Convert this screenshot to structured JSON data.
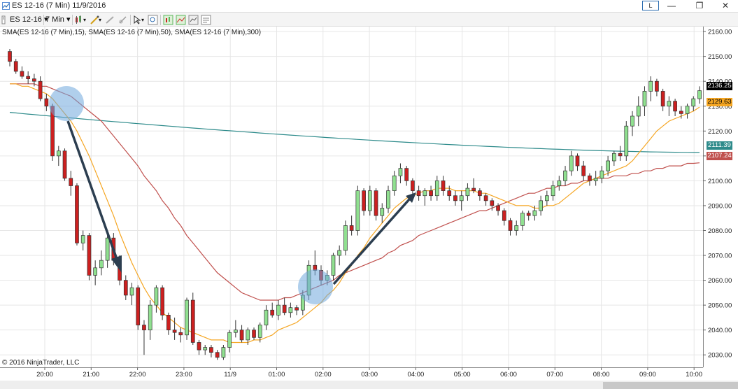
{
  "window": {
    "title": "ES 12-16 (7 Min)  11/9/2016",
    "link_label": "L",
    "minimize_glyph": "—",
    "restore_glyph": "❐",
    "close_glyph": "✕"
  },
  "toolbar": {
    "instrument": "ES 12-16",
    "interval": "7 Min",
    "dropdown_glyph": "▾"
  },
  "chart": {
    "indicator_label": "SMA(ES 12-16 (7 Min),15), SMA(ES 12-16 (7 Min),50), SMA(ES 12-16 (7 Min),300)",
    "copyright": "© 2016 NinjaTrader, LLC",
    "price_tags": [
      {
        "label": "2136.25",
        "color": "#000000",
        "text_color": "#ffffff"
      },
      {
        "label": "2129.63",
        "color": "#f5a623",
        "text_color": "#000000"
      },
      {
        "label": "2111.39",
        "color": "#2e8b8b",
        "text_color": "#ffffff"
      },
      {
        "label": "2107.24",
        "color": "#c0504d",
        "text_color": "#ffffff"
      }
    ]
  },
  "chart_data": {
    "type": "candlestick",
    "y_ticks": [
      "2160.00",
      "2150.00",
      "2140.00",
      "2130.00",
      "2120.00",
      "2110.00",
      "2100.00",
      "2090.00",
      "2080.00",
      "2070.00",
      "2060.00",
      "2050.00",
      "2040.00",
      "2030.00"
    ],
    "ylim": [
      2025,
      2162
    ],
    "x_ticks": [
      "20:00",
      "21:00",
      "22:00",
      "23:00",
      "11/9",
      "01:00",
      "02:00",
      "03:00",
      "04:00",
      "05:00",
      "06:00",
      "07:00",
      "08:00",
      "09:00",
      "10:00"
    ],
    "colors": {
      "up": "#90e090",
      "down": "#cc2020",
      "sma15": "#f5a623",
      "sma50": "#c0504d",
      "sma300": "#2e8b8b",
      "highlight": "#6fa8dc",
      "arrow": "#2c3e50"
    },
    "candles": [
      [
        2152,
        2153,
        2146,
        2148
      ],
      [
        2148,
        2149,
        2143,
        2144
      ],
      [
        2144,
        2146,
        2141,
        2142
      ],
      [
        2142,
        2144,
        2139,
        2141
      ],
      [
        2141,
        2143,
        2138,
        2140
      ],
      [
        2140,
        2142,
        2132,
        2133
      ],
      [
        2133,
        2135,
        2128,
        2130
      ],
      [
        2130,
        2131,
        2108,
        2110
      ],
      [
        2110,
        2114,
        2106,
        2112
      ],
      [
        2112,
        2113,
        2100,
        2101
      ],
      [
        2101,
        2104,
        2094,
        2098
      ],
      [
        2098,
        2099,
        2074,
        2075
      ],
      [
        2075,
        2080,
        2072,
        2078
      ],
      [
        2078,
        2079,
        2060,
        2062
      ],
      [
        2062,
        2068,
        2058,
        2065
      ],
      [
        2065,
        2072,
        2062,
        2068
      ],
      [
        2068,
        2080,
        2065,
        2077
      ],
      [
        2077,
        2079,
        2066,
        2068
      ],
      [
        2068,
        2070,
        2058,
        2060
      ],
      [
        2060,
        2062,
        2052,
        2054
      ],
      [
        2054,
        2059,
        2050,
        2057
      ],
      [
        2057,
        2058,
        2040,
        2042
      ],
      [
        2042,
        2044,
        2030,
        2040
      ],
      [
        2040,
        2052,
        2036,
        2050
      ],
      [
        2050,
        2058,
        2047,
        2057
      ],
      [
        2057,
        2058,
        2044,
        2046
      ],
      [
        2046,
        2047,
        2038,
        2040
      ],
      [
        2040,
        2045,
        2036,
        2039
      ],
      [
        2039,
        2041,
        2035,
        2038
      ],
      [
        2038,
        2053,
        2036,
        2052
      ],
      [
        2052,
        2055,
        2034,
        2035
      ],
      [
        2035,
        2036,
        2030,
        2032
      ],
      [
        2032,
        2034,
        2030,
        2033
      ],
      [
        2033,
        2034,
        2029,
        2031
      ],
      [
        2031,
        2032,
        2028,
        2029
      ],
      [
        2029,
        2034,
        2028,
        2033
      ],
      [
        2033,
        2040,
        2031,
        2039
      ],
      [
        2039,
        2044,
        2037,
        2040
      ],
      [
        2040,
        2042,
        2035,
        2036
      ],
      [
        2036,
        2041,
        2034,
        2040
      ],
      [
        2040,
        2041,
        2036,
        2037
      ],
      [
        2037,
        2043,
        2035,
        2042
      ],
      [
        2042,
        2050,
        2040,
        2048
      ],
      [
        2048,
        2051,
        2045,
        2046
      ],
      [
        2046,
        2052,
        2044,
        2050
      ],
      [
        2050,
        2053,
        2046,
        2047
      ],
      [
        2047,
        2051,
        2045,
        2049
      ],
      [
        2049,
        2050,
        2046,
        2048
      ],
      [
        2048,
        2056,
        2046,
        2054
      ],
      [
        2054,
        2068,
        2052,
        2066
      ],
      [
        2066,
        2072,
        2062,
        2064
      ],
      [
        2064,
        2066,
        2058,
        2060
      ],
      [
        2060,
        2064,
        2058,
        2062
      ],
      [
        2062,
        2071,
        2060,
        2070
      ],
      [
        2070,
        2074,
        2066,
        2072
      ],
      [
        2072,
        2084,
        2070,
        2082
      ],
      [
        2082,
        2086,
        2078,
        2080
      ],
      [
        2080,
        2098,
        2078,
        2096
      ],
      [
        2096,
        2097,
        2086,
        2088
      ],
      [
        2088,
        2098,
        2086,
        2096
      ],
      [
        2096,
        2097,
        2084,
        2086
      ],
      [
        2086,
        2091,
        2083,
        2089
      ],
      [
        2089,
        2098,
        2087,
        2096
      ],
      [
        2096,
        2104,
        2094,
        2102
      ],
      [
        2102,
        2107,
        2099,
        2105
      ],
      [
        2105,
        2106,
        2098,
        2100
      ],
      [
        2100,
        2101,
        2094,
        2096
      ],
      [
        2096,
        2098,
        2092,
        2094
      ],
      [
        2094,
        2097,
        2090,
        2096
      ],
      [
        2096,
        2098,
        2092,
        2094
      ],
      [
        2094,
        2102,
        2092,
        2100
      ],
      [
        2100,
        2102,
        2094,
        2096
      ],
      [
        2096,
        2098,
        2092,
        2094
      ],
      [
        2094,
        2096,
        2090,
        2092
      ],
      [
        2092,
        2096,
        2088,
        2094
      ],
      [
        2094,
        2099,
        2092,
        2097
      ],
      [
        2097,
        2101,
        2095,
        2096
      ],
      [
        2096,
        2097,
        2092,
        2094
      ],
      [
        2094,
        2095,
        2090,
        2092
      ],
      [
        2092,
        2093,
        2088,
        2090
      ],
      [
        2090,
        2091,
        2086,
        2088
      ],
      [
        2088,
        2089,
        2082,
        2084
      ],
      [
        2084,
        2085,
        2078,
        2080
      ],
      [
        2080,
        2084,
        2078,
        2082
      ],
      [
        2082,
        2088,
        2080,
        2087
      ],
      [
        2087,
        2088,
        2084,
        2086
      ],
      [
        2086,
        2090,
        2084,
        2088
      ],
      [
        2088,
        2094,
        2086,
        2092
      ],
      [
        2092,
        2096,
        2090,
        2094
      ],
      [
        2094,
        2100,
        2092,
        2098
      ],
      [
        2098,
        2102,
        2096,
        2100
      ],
      [
        2100,
        2106,
        2098,
        2104
      ],
      [
        2104,
        2112,
        2102,
        2110
      ],
      [
        2110,
        2111,
        2104,
        2106
      ],
      [
        2106,
        2108,
        2100,
        2102
      ],
      [
        2102,
        2103,
        2098,
        2100
      ],
      [
        2100,
        2104,
        2098,
        2101
      ],
      [
        2101,
        2106,
        2099,
        2104
      ],
      [
        2104,
        2110,
        2102,
        2108
      ],
      [
        2108,
        2112,
        2106,
        2111
      ],
      [
        2111,
        2114,
        2108,
        2110
      ],
      [
        2110,
        2124,
        2108,
        2122
      ],
      [
        2122,
        2128,
        2118,
        2126
      ],
      [
        2126,
        2134,
        2122,
        2130
      ],
      [
        2130,
        2138,
        2126,
        2136
      ],
      [
        2136,
        2142,
        2132,
        2140
      ],
      [
        2140,
        2141,
        2134,
        2136
      ],
      [
        2136,
        2137,
        2128,
        2130
      ],
      [
        2130,
        2134,
        2126,
        2132
      ],
      [
        2132,
        2133,
        2126,
        2128
      ],
      [
        2128,
        2130,
        2125,
        2127
      ],
      [
        2127,
        2131,
        2125,
        2130
      ],
      [
        2130,
        2134,
        2128,
        2133
      ],
      [
        2133,
        2138,
        2131,
        2136.25
      ]
    ],
    "sma15": [
      2139,
      2139,
      2138,
      2138,
      2137,
      2136,
      2135,
      2133,
      2130,
      2127,
      2124,
      2120,
      2115,
      2110,
      2104,
      2098,
      2092,
      2086,
      2079,
      2073,
      2067,
      2062,
      2057,
      2053,
      2050,
      2047,
      2045,
      2043,
      2041,
      2040,
      2039,
      2038,
      2037,
      2036,
      2036,
      2036,
      2035,
      2035,
      2035,
      2035,
      2036,
      2036,
      2037,
      2038,
      2040,
      2041,
      2042,
      2043,
      2045,
      2047,
      2049,
      2051,
      2054,
      2056,
      2059,
      2063,
      2066,
      2070,
      2073,
      2077,
      2080,
      2083,
      2086,
      2089,
      2091,
      2093,
      2094,
      2095,
      2096,
      2096,
      2097,
      2097,
      2097,
      2096,
      2096,
      2096,
      2096,
      2095,
      2095,
      2094,
      2093,
      2092,
      2091,
      2090,
      2090,
      2090,
      2089,
      2089,
      2090,
      2090,
      2091,
      2093,
      2095,
      2097,
      2099,
      2100,
      2101,
      2102,
      2103,
      2104,
      2105,
      2106,
      2108,
      2111,
      2114,
      2117,
      2120,
      2122,
      2124,
      2125,
      2126,
      2127,
      2128,
      2129.63
    ],
    "sma50": [
      2139,
      2139,
      2139,
      2139,
      2139,
      2138,
      2138,
      2137,
      2136,
      2135,
      2134,
      2132,
      2130,
      2128,
      2126,
      2124,
      2121,
      2118,
      2115,
      2112,
      2109,
      2106,
      2102,
      2099,
      2096,
      2092,
      2089,
      2085,
      2082,
      2078,
      2075,
      2072,
      2069,
      2066,
      2063,
      2061,
      2059,
      2057,
      2055,
      2054,
      2053,
      2052,
      2052,
      2052,
      2052,
      2053,
      2053,
      2054,
      2055,
      2056,
      2057,
      2058,
      2059,
      2060,
      2062,
      2063,
      2064,
      2065,
      2066,
      2067,
      2068,
      2069,
      2071,
      2072,
      2074,
      2075,
      2076,
      2078,
      2079,
      2080,
      2081,
      2082,
      2083,
      2084,
      2085,
      2086,
      2087,
      2088,
      2088,
      2089,
      2090,
      2091,
      2092,
      2093,
      2094,
      2095,
      2095,
      2096,
      2097,
      2097,
      2098,
      2098,
      2099,
      2099,
      2100,
      2100,
      2101,
      2101,
      2101,
      2102,
      2102,
      2102,
      2103,
      2103,
      2104,
      2104,
      2105,
      2105,
      2106,
      2106,
      2106,
      2107,
      2107,
      2107.24
    ],
    "sma300_start": 2127.5,
    "sma300_end": 2111.39
  }
}
